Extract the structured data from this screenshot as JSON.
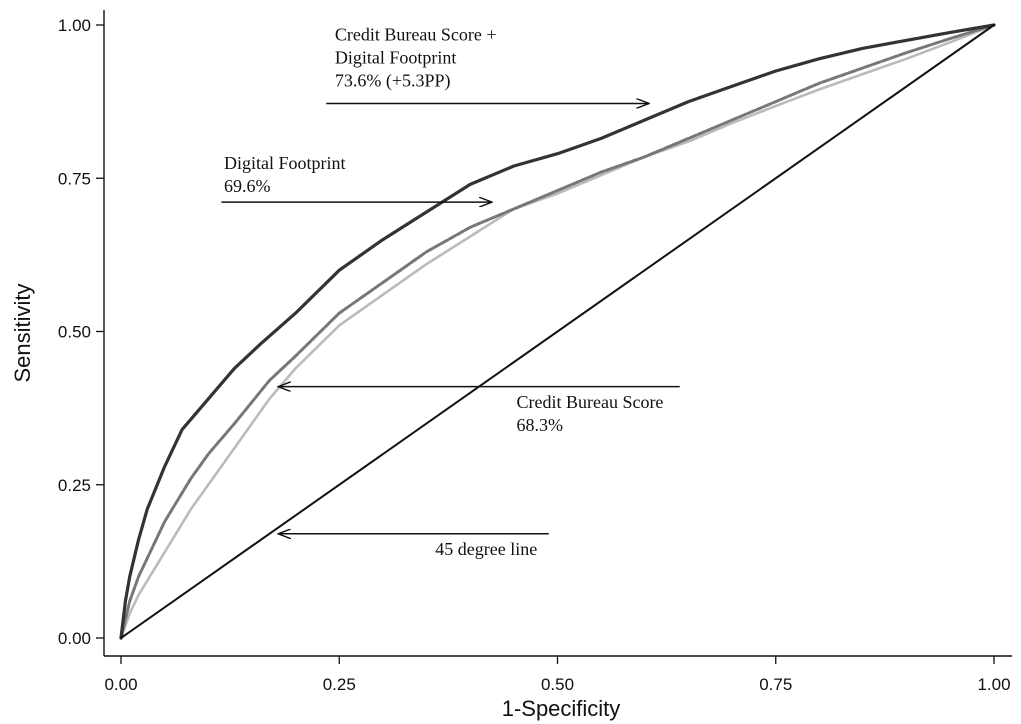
{
  "chart_data": {
    "type": "line",
    "title": "",
    "xlabel": "1-Specificity",
    "ylabel": "Sensitivity",
    "xlim": [
      0,
      1
    ],
    "ylim": [
      0,
      1
    ],
    "x_ticks": [
      "0.00",
      "0.25",
      "0.50",
      "0.75",
      "1.00"
    ],
    "y_ticks": [
      "0.00",
      "0.25",
      "0.50",
      "0.75",
      "1.00"
    ],
    "grid": false,
    "legend": "none",
    "series": [
      {
        "key": "combined",
        "color": "#333333",
        "style": "solid",
        "x": [
          0,
          0.005,
          0.01,
          0.02,
          0.03,
          0.05,
          0.07,
          0.1,
          0.13,
          0.16,
          0.2,
          0.25,
          0.3,
          0.35,
          0.4,
          0.45,
          0.5,
          0.55,
          0.6,
          0.65,
          0.7,
          0.75,
          0.8,
          0.85,
          0.9,
          0.95,
          1
        ],
        "y": [
          0,
          0.06,
          0.1,
          0.16,
          0.21,
          0.28,
          0.34,
          0.39,
          0.44,
          0.48,
          0.53,
          0.6,
          0.65,
          0.695,
          0.74,
          0.77,
          0.79,
          0.815,
          0.845,
          0.875,
          0.9,
          0.925,
          0.945,
          0.962,
          0.975,
          0.988,
          1
        ]
      },
      {
        "key": "digital_footprint",
        "color": "#777777",
        "style": "dashed",
        "x": [
          0,
          0.01,
          0.02,
          0.05,
          0.08,
          0.1,
          0.13,
          0.17,
          0.2,
          0.25,
          0.3,
          0.35,
          0.4,
          0.45,
          0.5,
          0.55,
          0.6,
          0.65,
          0.7,
          0.75,
          0.8,
          0.85,
          0.9,
          0.95,
          1
        ],
        "y": [
          0,
          0.06,
          0.1,
          0.19,
          0.26,
          0.3,
          0.35,
          0.42,
          0.46,
          0.53,
          0.58,
          0.63,
          0.67,
          0.7,
          0.73,
          0.76,
          0.785,
          0.815,
          0.845,
          0.875,
          0.905,
          0.93,
          0.955,
          0.978,
          1
        ]
      },
      {
        "key": "credit_bureau",
        "color": "#bbbbbb",
        "style": "solid",
        "x": [
          0,
          0.01,
          0.02,
          0.05,
          0.08,
          0.1,
          0.13,
          0.17,
          0.2,
          0.25,
          0.3,
          0.35,
          0.4,
          0.45,
          0.5,
          0.55,
          0.6,
          0.65,
          0.7,
          0.75,
          0.8,
          0.85,
          0.9,
          0.95,
          1
        ],
        "y": [
          0,
          0.04,
          0.07,
          0.14,
          0.21,
          0.25,
          0.31,
          0.39,
          0.44,
          0.51,
          0.56,
          0.61,
          0.655,
          0.7,
          0.725,
          0.755,
          0.785,
          0.81,
          0.84,
          0.868,
          0.895,
          0.92,
          0.945,
          0.972,
          1
        ]
      },
      {
        "key": "reference_45",
        "color": "#111111",
        "style": "solid",
        "x": [
          0,
          1
        ],
        "y": [
          0,
          1
        ]
      }
    ],
    "annotations": [
      {
        "key": "combined",
        "lines": [
          "Credit Bureau Score +",
          "Digital Footprint",
          "73.6% (+5.3PP)"
        ],
        "text_x": 0.245,
        "text_y": 0.975,
        "arrow_from": [
          0.235,
          0.872
        ],
        "arrow_to": [
          0.605,
          0.872
        ]
      },
      {
        "key": "digital_footprint",
        "lines": [
          "Digital Footprint",
          "69.6%"
        ],
        "text_x": 0.118,
        "text_y": 0.765,
        "arrow_from": [
          0.115,
          0.711
        ],
        "arrow_to": [
          0.425,
          0.711
        ]
      },
      {
        "key": "credit_bureau",
        "lines": [
          "Credit Bureau Score",
          "68.3%"
        ],
        "text_x": 0.453,
        "text_y": 0.375,
        "arrow_from": [
          0.64,
          0.41
        ],
        "arrow_to": [
          0.18,
          0.41
        ]
      },
      {
        "key": "reference_45",
        "lines": [
          "45 degree line"
        ],
        "text_x": 0.36,
        "text_y": 0.135,
        "arrow_from": [
          0.49,
          0.17
        ],
        "arrow_to": [
          0.18,
          0.17
        ]
      }
    ]
  }
}
